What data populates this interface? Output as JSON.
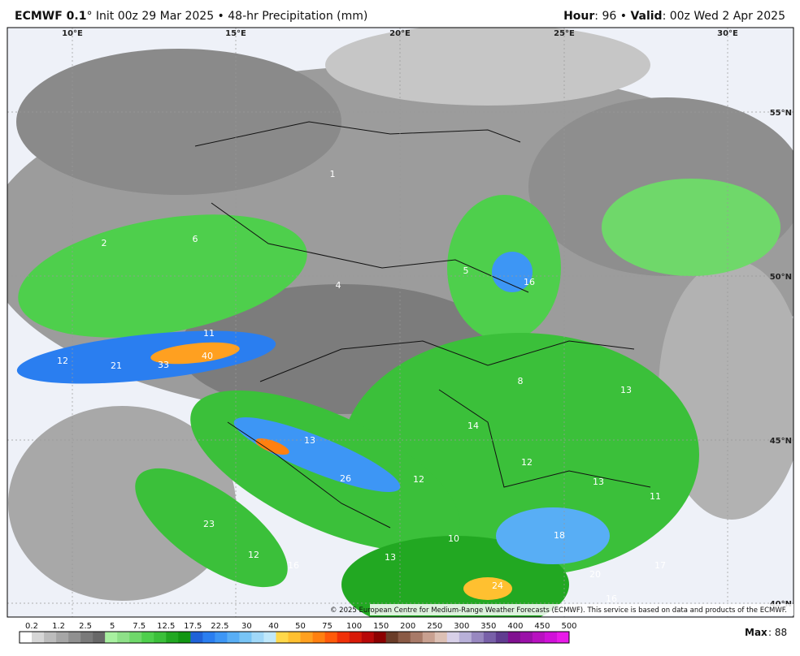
{
  "header": {
    "model": "ECMWF 0.1",
    "degree": "°",
    "init": " Init 00z 29 Mar 2025 • 48-hr Precipitation (mm)",
    "hour_label": "Hour",
    "hour": ": 96 • ",
    "valid_label": "Valid",
    "valid": ": 00z Wed 2 Apr 2025"
  },
  "map": {
    "longitudes": [
      "10°E",
      "15°E",
      "20°E",
      "25°E",
      "30°E"
    ],
    "latitudes": [
      "55°N",
      "50°N",
      "45°N",
      "40°N"
    ],
    "labels": [
      "40",
      "33",
      "21",
      "12",
      "11",
      "16",
      "13",
      "14",
      "13",
      "12",
      "26",
      "12",
      "13",
      "18",
      "10",
      "23",
      "12",
      "16",
      "13",
      "17",
      "20",
      "24",
      "16",
      "11",
      "5",
      "6",
      "4",
      "1",
      "2",
      "8"
    ],
    "copyright": "© 2025 European Centre for Medium-Range Weather Forecasts (ECMWF). This service is based on data and products of the ECMWF."
  },
  "colorbar": {
    "ticks": [
      "0.2",
      "1.2",
      "2.5",
      "5",
      "7.5",
      "12.5",
      "17.5",
      "22.5",
      "30",
      "40",
      "50",
      "75",
      "100",
      "150",
      "200",
      "250",
      "300",
      "350",
      "400",
      "450",
      "500"
    ],
    "colors": [
      "#ffffff",
      "#d6d6d6",
      "#bcbcbc",
      "#a6a6a6",
      "#909090",
      "#7a7a7a",
      "#686868",
      "#a8f0a0",
      "#8ee088",
      "#6fd86a",
      "#4ecf4c",
      "#3bc03a",
      "#22a822",
      "#129612",
      "#1f62d8",
      "#2a7ef0",
      "#3d96f5",
      "#58aef5",
      "#78c4f5",
      "#a0d8f8",
      "#c0e8fa",
      "#ffd84a",
      "#ffc030",
      "#ffa020",
      "#ff8010",
      "#ff5a0a",
      "#f03008",
      "#d81a08",
      "#b80808",
      "#8c0000",
      "#6a3c28",
      "#8a5a45",
      "#a87a68",
      "#c8a090",
      "#dcc0b4",
      "#d8d0e8",
      "#b8b0d8",
      "#9888c0",
      "#7860a8",
      "#603c90",
      "#801090",
      "#9a10a8",
      "#b810c0",
      "#d010d8",
      "#e81ae8"
    ]
  },
  "max": {
    "label": "Max",
    "value": ": 88"
  }
}
